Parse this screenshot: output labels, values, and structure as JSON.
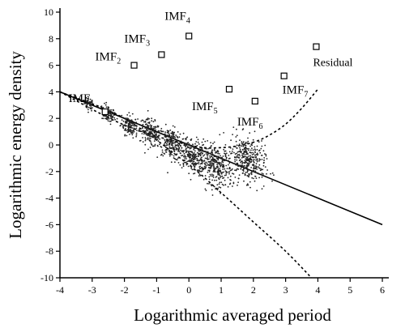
{
  "chart_data": {
    "type": "scatter",
    "xlabel": "Logarithmic averaged period",
    "ylabel": "Logarithmic energy density",
    "xlim": [
      -4,
      6.2
    ],
    "ylim": [
      -10,
      10
    ],
    "x_ticks": [
      -4,
      -3,
      -2,
      -1,
      0,
      1,
      2,
      3,
      4,
      5,
      6
    ],
    "y_ticks": [
      -10,
      -8,
      -6,
      -4,
      -2,
      0,
      2,
      4,
      6,
      8,
      10
    ],
    "grid": false,
    "markers": [
      {
        "label": "IMF",
        "sub": "1",
        "x": -2.6,
        "y": 2.5
      },
      {
        "label": "IMF",
        "sub": "2",
        "x": -1.7,
        "y": 6.0
      },
      {
        "label": "IMF",
        "sub": "3",
        "x": -0.85,
        "y": 6.8
      },
      {
        "label": "IMF",
        "sub": "4",
        "x": 0.0,
        "y": 8.2
      },
      {
        "label": "IMF",
        "sub": "5",
        "x": 1.25,
        "y": 4.2
      },
      {
        "label": "IMF",
        "sub": "6",
        "x": 2.05,
        "y": 3.3
      },
      {
        "label": "IMF",
        "sub": "7",
        "x": 2.95,
        "y": 5.2
      },
      {
        "label": "Residual",
        "sub": "",
        "x": 3.95,
        "y": 7.4
      }
    ],
    "clusters": [
      {
        "x": -3.1,
        "y": 3.1
      },
      {
        "x": -2.5,
        "y": 2.3
      },
      {
        "x": -1.85,
        "y": 1.5
      },
      {
        "x": -1.2,
        "y": 0.9
      },
      {
        "x": -0.55,
        "y": 0.1
      },
      {
        "x": 0.1,
        "y": -0.8
      },
      {
        "x": 0.85,
        "y": -1.6
      },
      {
        "x": 1.8,
        "y": -1.1
      }
    ],
    "fit_line": {
      "x": [
        -4,
        6
      ],
      "y": [
        4.0,
        -6.0
      ]
    },
    "upper_bound": {
      "x": [
        -4,
        -2,
        0,
        1,
        2,
        2.8,
        3.4,
        4.0
      ],
      "y": [
        4.0,
        1.5,
        0.0,
        -0.2,
        0.2,
        1.2,
        2.5,
        4.2
      ]
    },
    "lower_bound": {
      "x": [
        -4,
        -2,
        0,
        1,
        2,
        3,
        3.8
      ],
      "y": [
        4.0,
        2.0,
        -1.5,
        -3.6,
        -5.8,
        -8.0,
        -10.0
      ]
    }
  }
}
